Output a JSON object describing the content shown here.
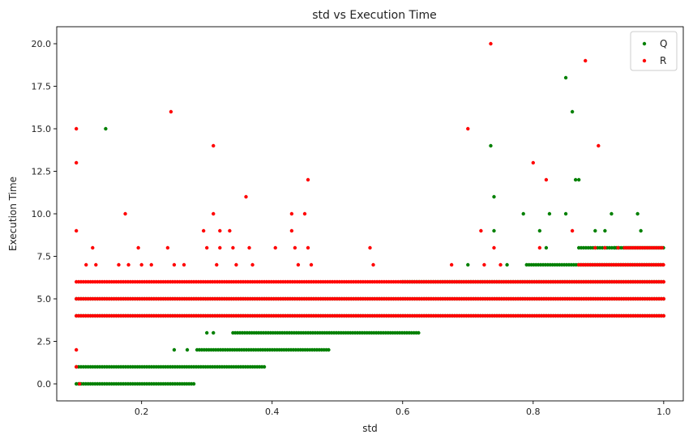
{
  "chart_data": {
    "type": "scatter",
    "title": "std vs Execution Time",
    "xlabel": "std",
    "ylabel": "Execution Time",
    "xlim": [
      0.07,
      1.03
    ],
    "ylim": [
      -1,
      21
    ],
    "xticks": [
      0.2,
      0.4,
      0.6,
      0.8,
      1.0
    ],
    "xtick_labels": [
      "0.2",
      "0.4",
      "0.6",
      "0.8",
      "1.0"
    ],
    "yticks": [
      0,
      2.5,
      5,
      7.5,
      10,
      12.5,
      15,
      17.5,
      20
    ],
    "ytick_labels": [
      "0.0",
      "2.5",
      "5.0",
      "7.5",
      "10.0",
      "12.5",
      "15.0",
      "17.5",
      "20.0"
    ],
    "grid": false,
    "legend": "top-right",
    "series": [
      {
        "name": "Q",
        "color": "#008000",
        "bands": [
          {
            "y": 0,
            "x": [
              0.1,
              0.28
            ]
          },
          {
            "y": 1,
            "x": [
              0.1,
              0.39
            ]
          },
          {
            "y": 2,
            "x": [
              0.285,
              0.49
            ]
          },
          {
            "y": 3,
            "x": [
              0.34,
              0.625
            ]
          },
          {
            "y": 4,
            "x": [
              0.1,
              1.0
            ]
          },
          {
            "y": 5,
            "x": [
              0.1,
              1.0
            ]
          },
          {
            "y": 6,
            "x": [
              0.6,
              1.0
            ]
          },
          {
            "y": 7,
            "x": [
              0.79,
              1.0
            ]
          },
          {
            "y": 8,
            "x": [
              0.87,
              1.0
            ]
          }
        ],
        "points": [
          [
            0.145,
            15
          ],
          [
            0.25,
            2
          ],
          [
            0.27,
            2
          ],
          [
            0.3,
            3
          ],
          [
            0.31,
            3
          ],
          [
            0.7,
            7
          ],
          [
            0.735,
            14
          ],
          [
            0.74,
            11
          ],
          [
            0.74,
            9
          ],
          [
            0.76,
            7
          ],
          [
            0.785,
            10
          ],
          [
            0.81,
            9
          ],
          [
            0.82,
            8
          ],
          [
            0.825,
            10
          ],
          [
            0.85,
            18
          ],
          [
            0.85,
            10
          ],
          [
            0.86,
            16
          ],
          [
            0.865,
            12
          ],
          [
            0.87,
            12
          ],
          [
            0.895,
            9
          ],
          [
            0.91,
            9
          ],
          [
            0.92,
            10
          ],
          [
            0.925,
            8
          ],
          [
            0.96,
            10
          ],
          [
            0.965,
            9
          ]
        ]
      },
      {
        "name": "R",
        "color": "#ff0000",
        "bands": [
          {
            "y": 4,
            "x": [
              0.1,
              1.0
            ]
          },
          {
            "y": 5,
            "x": [
              0.1,
              1.0
            ]
          },
          {
            "y": 6,
            "x": [
              0.1,
              1.0
            ]
          },
          {
            "y": 7,
            "x": [
              0.87,
              1.0
            ]
          },
          {
            "y": 8,
            "x": [
              0.94,
              1.0
            ]
          }
        ],
        "points": [
          [
            0.1,
            15
          ],
          [
            0.1,
            13
          ],
          [
            0.1,
            9
          ],
          [
            0.1,
            2
          ],
          [
            0.1,
            1
          ],
          [
            0.105,
            0
          ],
          [
            0.115,
            7
          ],
          [
            0.125,
            8
          ],
          [
            0.13,
            7
          ],
          [
            0.165,
            7
          ],
          [
            0.175,
            10
          ],
          [
            0.18,
            7
          ],
          [
            0.195,
            8
          ],
          [
            0.2,
            7
          ],
          [
            0.215,
            7
          ],
          [
            0.24,
            8
          ],
          [
            0.245,
            16
          ],
          [
            0.25,
            7
          ],
          [
            0.265,
            7
          ],
          [
            0.295,
            9
          ],
          [
            0.3,
            8
          ],
          [
            0.31,
            14
          ],
          [
            0.31,
            10
          ],
          [
            0.315,
            7
          ],
          [
            0.32,
            9
          ],
          [
            0.32,
            8
          ],
          [
            0.335,
            9
          ],
          [
            0.34,
            8
          ],
          [
            0.345,
            7
          ],
          [
            0.36,
            11
          ],
          [
            0.365,
            8
          ],
          [
            0.37,
            7
          ],
          [
            0.405,
            8
          ],
          [
            0.43,
            10
          ],
          [
            0.43,
            9
          ],
          [
            0.435,
            8
          ],
          [
            0.44,
            7
          ],
          [
            0.45,
            10
          ],
          [
            0.455,
            12
          ],
          [
            0.455,
            8
          ],
          [
            0.46,
            7
          ],
          [
            0.55,
            8
          ],
          [
            0.555,
            7
          ],
          [
            0.675,
            7
          ],
          [
            0.7,
            15
          ],
          [
            0.72,
            9
          ],
          [
            0.725,
            7
          ],
          [
            0.735,
            20
          ],
          [
            0.74,
            8
          ],
          [
            0.75,
            7
          ],
          [
            0.8,
            13
          ],
          [
            0.81,
            8
          ],
          [
            0.82,
            12
          ],
          [
            0.86,
            9
          ],
          [
            0.88,
            19
          ],
          [
            0.895,
            8
          ],
          [
            0.9,
            14
          ],
          [
            0.91,
            8
          ],
          [
            0.93,
            8
          ]
        ]
      }
    ]
  }
}
